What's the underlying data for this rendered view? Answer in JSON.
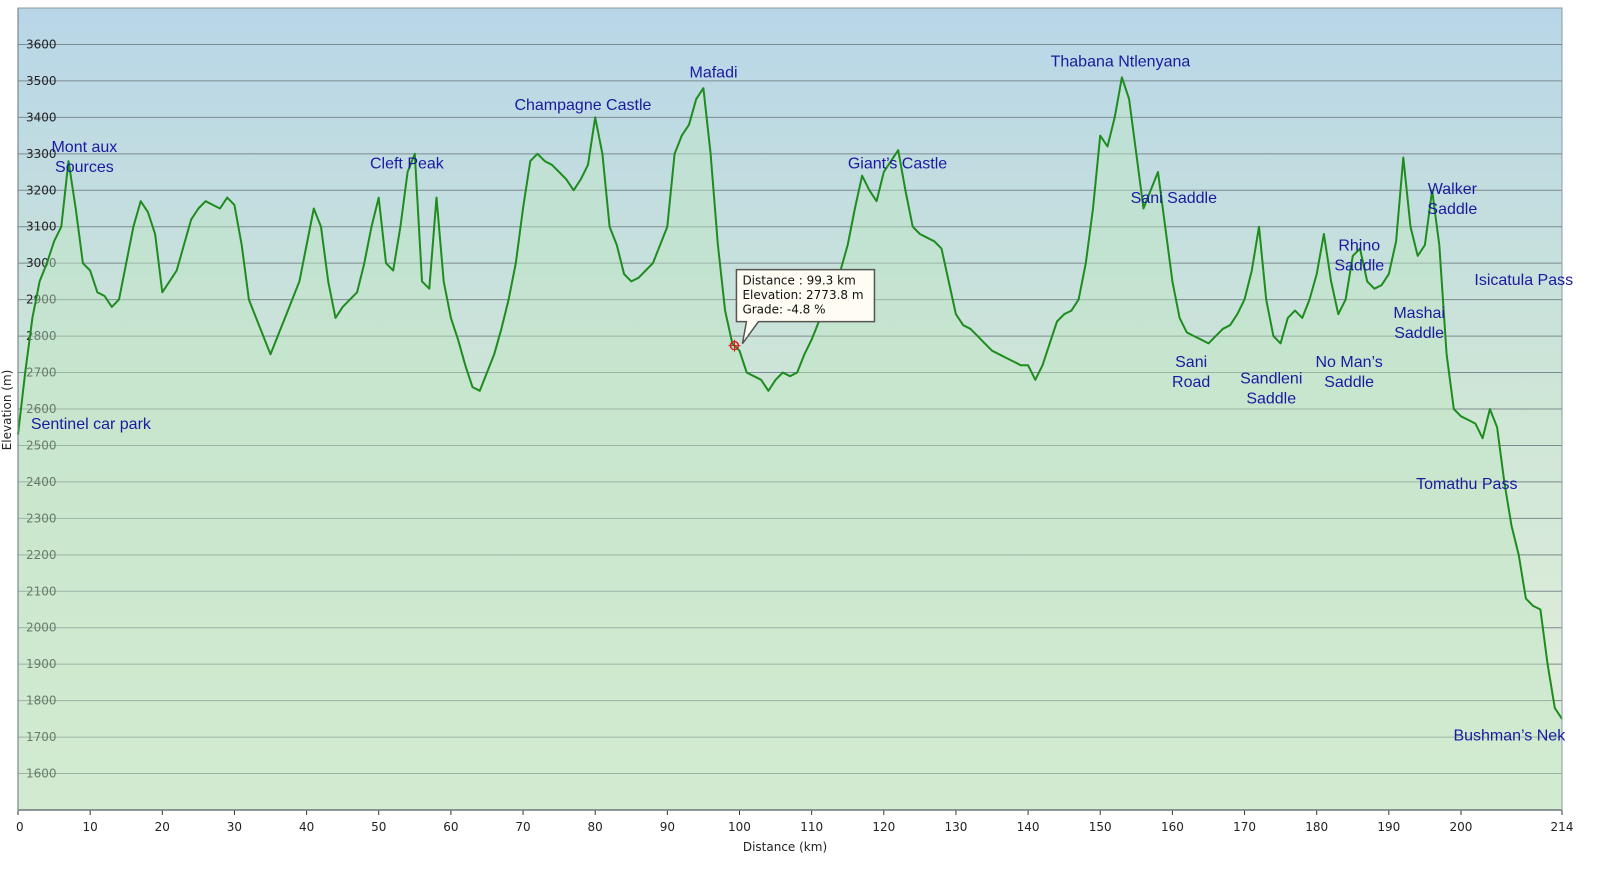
{
  "chart_data": {
    "type": "area",
    "xlabel": "Distance  (km)",
    "ylabel": "Elevation (m)",
    "xlim": [
      0,
      214
    ],
    "ylim": [
      1500,
      3700
    ],
    "grid": true,
    "x_ticks": [
      "0",
      "10",
      "20",
      "30",
      "40",
      "50",
      "60",
      "70",
      "80",
      "90",
      "100",
      "110",
      "120",
      "130",
      "140",
      "150",
      "160",
      "170",
      "180",
      "190",
      "200",
      "214"
    ],
    "x_tick_values": [
      0,
      10,
      20,
      30,
      40,
      50,
      60,
      70,
      80,
      90,
      100,
      110,
      120,
      130,
      140,
      150,
      160,
      170,
      180,
      190,
      200,
      214
    ],
    "y_ticks": [
      "1600",
      "1700",
      "1800",
      "1900",
      "2000",
      "2100",
      "2200",
      "2300",
      "2400",
      "2500",
      "2600",
      "2700",
      "2800",
      "2900",
      "3000",
      "3100",
      "3200",
      "3300",
      "3400",
      "3500",
      "3600"
    ],
    "y_tick_values": [
      1600,
      1700,
      1800,
      1900,
      2000,
      2100,
      2200,
      2300,
      2400,
      2500,
      2600,
      2700,
      2800,
      2900,
      3000,
      3100,
      3200,
      3300,
      3400,
      3500,
      3600
    ],
    "series": [
      {
        "color": "#1e8c1e",
        "points": [
          [
            0,
            2530
          ],
          [
            1,
            2700
          ],
          [
            2,
            2850
          ],
          [
            3,
            2950
          ],
          [
            4,
            3000
          ],
          [
            5,
            3060
          ],
          [
            6,
            3100
          ],
          [
            7,
            3280
          ],
          [
            8,
            3150
          ],
          [
            9,
            3000
          ],
          [
            10,
            2980
          ],
          [
            11,
            2920
          ],
          [
            12,
            2910
          ],
          [
            13,
            2880
          ],
          [
            14,
            2900
          ],
          [
            15,
            3000
          ],
          [
            16,
            3100
          ],
          [
            17,
            3170
          ],
          [
            18,
            3140
          ],
          [
            19,
            3080
          ],
          [
            20,
            2920
          ],
          [
            21,
            2950
          ],
          [
            22,
            2980
          ],
          [
            23,
            3050
          ],
          [
            24,
            3120
          ],
          [
            25,
            3150
          ],
          [
            26,
            3170
          ],
          [
            27,
            3160
          ],
          [
            28,
            3150
          ],
          [
            29,
            3180
          ],
          [
            30,
            3160
          ],
          [
            31,
            3050
          ],
          [
            32,
            2900
          ],
          [
            33,
            2850
          ],
          [
            34,
            2800
          ],
          [
            35,
            2750
          ],
          [
            36,
            2800
          ],
          [
            37,
            2850
          ],
          [
            38,
            2900
          ],
          [
            39,
            2950
          ],
          [
            40,
            3050
          ],
          [
            41,
            3150
          ],
          [
            42,
            3100
          ],
          [
            43,
            2950
          ],
          [
            44,
            2850
          ],
          [
            45,
            2880
          ],
          [
            46,
            2900
          ],
          [
            47,
            2920
          ],
          [
            48,
            3000
          ],
          [
            49,
            3100
          ],
          [
            50,
            3180
          ],
          [
            51,
            3000
          ],
          [
            52,
            2980
          ],
          [
            53,
            3100
          ],
          [
            54,
            3250
          ],
          [
            55,
            3300
          ],
          [
            56,
            2950
          ],
          [
            57,
            2930
          ],
          [
            58,
            3180
          ],
          [
            59,
            2950
          ],
          [
            60,
            2850
          ],
          [
            61,
            2790
          ],
          [
            62,
            2720
          ],
          [
            63,
            2660
          ],
          [
            64,
            2650
          ],
          [
            65,
            2700
          ],
          [
            66,
            2750
          ],
          [
            67,
            2820
          ],
          [
            68,
            2900
          ],
          [
            69,
            3000
          ],
          [
            70,
            3150
          ],
          [
            71,
            3280
          ],
          [
            72,
            3300
          ],
          [
            73,
            3280
          ],
          [
            74,
            3270
          ],
          [
            75,
            3250
          ],
          [
            76,
            3230
          ],
          [
            77,
            3200
          ],
          [
            78,
            3230
          ],
          [
            79,
            3270
          ],
          [
            80,
            3400
          ],
          [
            81,
            3300
          ],
          [
            82,
            3100
          ],
          [
            83,
            3050
          ],
          [
            84,
            2970
          ],
          [
            85,
            2950
          ],
          [
            86,
            2960
          ],
          [
            87,
            2980
          ],
          [
            88,
            3000
          ],
          [
            89,
            3050
          ],
          [
            90,
            3100
          ],
          [
            91,
            3300
          ],
          [
            92,
            3350
          ],
          [
            93,
            3380
          ],
          [
            94,
            3450
          ],
          [
            95,
            3480
          ],
          [
            96,
            3300
          ],
          [
            97,
            3050
          ],
          [
            98,
            2870
          ],
          [
            99,
            2780
          ],
          [
            100,
            2760
          ],
          [
            101,
            2700
          ],
          [
            102,
            2690
          ],
          [
            103,
            2680
          ],
          [
            104,
            2650
          ],
          [
            105,
            2680
          ],
          [
            106,
            2700
          ],
          [
            107,
            2690
          ],
          [
            108,
            2700
          ],
          [
            109,
            2750
          ],
          [
            110,
            2790
          ],
          [
            111,
            2840
          ],
          [
            112,
            2880
          ],
          [
            113,
            2920
          ],
          [
            114,
            2980
          ],
          [
            115,
            3050
          ],
          [
            116,
            3150
          ],
          [
            117,
            3240
          ],
          [
            118,
            3200
          ],
          [
            119,
            3170
          ],
          [
            120,
            3250
          ],
          [
            121,
            3280
          ],
          [
            122,
            3310
          ],
          [
            123,
            3200
          ],
          [
            124,
            3100
          ],
          [
            125,
            3080
          ],
          [
            126,
            3070
          ],
          [
            127,
            3060
          ],
          [
            128,
            3040
          ],
          [
            129,
            2950
          ],
          [
            130,
            2860
          ],
          [
            131,
            2830
          ],
          [
            132,
            2820
          ],
          [
            133,
            2800
          ],
          [
            134,
            2780
          ],
          [
            135,
            2760
          ],
          [
            136,
            2750
          ],
          [
            137,
            2740
          ],
          [
            138,
            2730
          ],
          [
            139,
            2720
          ],
          [
            140,
            2720
          ],
          [
            141,
            2680
          ],
          [
            142,
            2720
          ],
          [
            143,
            2780
          ],
          [
            144,
            2840
          ],
          [
            145,
            2860
          ],
          [
            146,
            2870
          ],
          [
            147,
            2900
          ],
          [
            148,
            3000
          ],
          [
            149,
            3150
          ],
          [
            150,
            3350
          ],
          [
            151,
            3320
          ],
          [
            152,
            3400
          ],
          [
            153,
            3510
          ],
          [
            154,
            3450
          ],
          [
            155,
            3300
          ],
          [
            156,
            3150
          ],
          [
            157,
            3200
          ],
          [
            158,
            3250
          ],
          [
            159,
            3100
          ],
          [
            160,
            2950
          ],
          [
            161,
            2850
          ],
          [
            162,
            2810
          ],
          [
            163,
            2800
          ],
          [
            164,
            2790
          ],
          [
            165,
            2780
          ],
          [
            166,
            2800
          ],
          [
            167,
            2820
          ],
          [
            168,
            2830
          ],
          [
            169,
            2860
          ],
          [
            170,
            2900
          ],
          [
            171,
            2980
          ],
          [
            172,
            3100
          ],
          [
            173,
            2900
          ],
          [
            174,
            2800
          ],
          [
            175,
            2780
          ],
          [
            176,
            2850
          ],
          [
            177,
            2870
          ],
          [
            178,
            2850
          ],
          [
            179,
            2900
          ],
          [
            180,
            2970
          ],
          [
            181,
            3080
          ],
          [
            182,
            2950
          ],
          [
            183,
            2860
          ],
          [
            184,
            2900
          ],
          [
            185,
            3020
          ],
          [
            186,
            3040
          ],
          [
            187,
            2950
          ],
          [
            188,
            2930
          ],
          [
            189,
            2940
          ],
          [
            190,
            2970
          ],
          [
            191,
            3060
          ],
          [
            192,
            3290
          ],
          [
            193,
            3100
          ],
          [
            194,
            3020
          ],
          [
            195,
            3050
          ],
          [
            196,
            3200
          ],
          [
            197,
            3050
          ],
          [
            198,
            2750
          ],
          [
            199,
            2600
          ],
          [
            200,
            2580
          ],
          [
            201,
            2570
          ],
          [
            202,
            2560
          ],
          [
            203,
            2520
          ],
          [
            204,
            2600
          ],
          [
            205,
            2550
          ],
          [
            206,
            2400
          ],
          [
            207,
            2280
          ],
          [
            208,
            2200
          ],
          [
            209,
            2080
          ],
          [
            210,
            2060
          ],
          [
            211,
            2050
          ],
          [
            212,
            1900
          ],
          [
            213,
            1780
          ],
          [
            214,
            1750
          ]
        ]
      }
    ],
    "annotations": [
      {
        "lines": [
          "Mont aux",
          "Sources"
        ],
        "x": 9.2,
        "y": 3305
      },
      {
        "lines": [
          "Cleft Peak"
        ],
        "x": 53.9,
        "y": 3260
      },
      {
        "lines": [
          "Champagne Castle"
        ],
        "x": 78.3,
        "y": 3420
      },
      {
        "lines": [
          "Mafadi"
        ],
        "x": 96.4,
        "y": 3510
      },
      {
        "lines": [
          "Giant’s Castle"
        ],
        "x": 121.9,
        "y": 3260
      },
      {
        "lines": [
          "Thabana Ntlenyana"
        ],
        "x": 152.8,
        "y": 3540
      },
      {
        "lines": [
          "Sani Saddle"
        ],
        "x": 160.2,
        "y": 3165
      },
      {
        "lines": [
          "Sani",
          "Road"
        ],
        "x": 162.6,
        "y": 2715
      },
      {
        "lines": [
          "Sandleni",
          "Saddle"
        ],
        "x": 173.7,
        "y": 2670
      },
      {
        "lines": [
          "No Man’s",
          "Saddle"
        ],
        "x": 184.5,
        "y": 2715
      },
      {
        "lines": [
          "Rhino",
          "Saddle"
        ],
        "x": 185.9,
        "y": 3035
      },
      {
        "lines": [
          "Walker",
          "Saddle"
        ],
        "x": 198.8,
        "y": 3190
      },
      {
        "lines": [
          "Mashai",
          "Saddle"
        ],
        "x": 194.2,
        "y": 2850
      },
      {
        "lines": [
          "Isicatula Pass"
        ],
        "x": 208.7,
        "y": 2940
      },
      {
        "lines": [
          "Tomathu Pass"
        ],
        "x": 200.8,
        "y": 2380
      },
      {
        "lines": [
          "Sentinel car park"
        ],
        "x": 10.1,
        "y": 2545
      },
      {
        "lines": [
          "Bushman’s Nek"
        ],
        "x": 206.7,
        "y": 1690
      }
    ],
    "tooltip": {
      "x": 99.3,
      "y": 2773.8,
      "lines": [
        "Distance : 99.3 km",
        "Elevation: 2773.8 m",
        "Grade: -4.8 %"
      ]
    }
  }
}
